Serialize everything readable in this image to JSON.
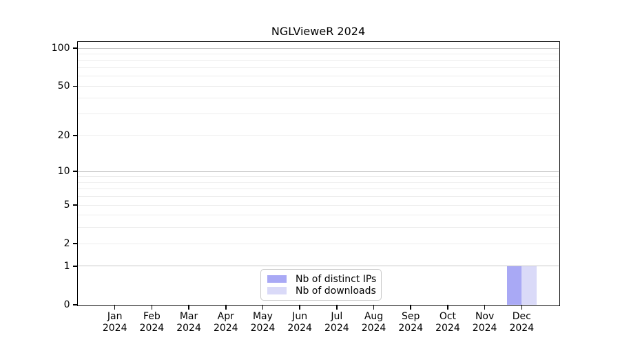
{
  "chart_data": {
    "type": "bar",
    "title": "NGLVieweR 2024",
    "x_categories": [
      "Jan",
      "Feb",
      "Mar",
      "Apr",
      "May",
      "Jun",
      "Jul",
      "Aug",
      "Sep",
      "Oct",
      "Nov",
      "Dec"
    ],
    "x_year": "2024",
    "series": [
      {
        "name": "Nb of distinct IPs",
        "color": "#a9a9f5",
        "values": [
          0,
          0,
          0,
          0,
          0,
          0,
          0,
          0,
          0,
          0,
          0,
          1
        ]
      },
      {
        "name": "Nb of downloads",
        "color": "#dadaf8",
        "values": [
          0,
          0,
          0,
          0,
          0,
          0,
          0,
          0,
          0,
          0,
          0,
          1
        ]
      }
    ],
    "yscale": "log1p",
    "ylim": [
      0,
      112
    ],
    "yticks": [
      0,
      1,
      2,
      5,
      10,
      20,
      50,
      100
    ],
    "grid_major": [
      1,
      10,
      100
    ],
    "grid_minor": [
      2,
      3,
      4,
      5,
      6,
      7,
      8,
      9,
      20,
      30,
      40,
      50,
      60,
      70,
      80,
      90
    ],
    "legend": {
      "position": "bottom-center"
    },
    "colors": {
      "grid_major": "#c6c6c6",
      "grid_minor": "#ececec",
      "axis": "#000000",
      "background": "#ffffff"
    }
  }
}
